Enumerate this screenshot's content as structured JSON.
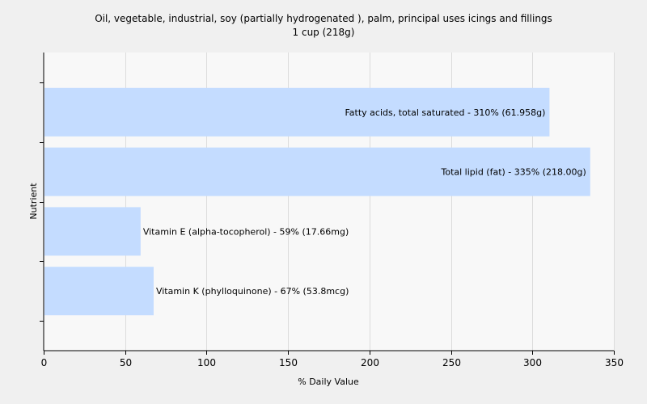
{
  "chart_data": {
    "type": "bar",
    "orientation": "horizontal",
    "title": "Oil, vegetable, industrial, soy (partially hydrogenated ), palm, principal uses icings and fillings",
    "subtitle": "1 cup (218g)",
    "xlabel": "% Daily Value",
    "ylabel": "Nutrient",
    "xlim": [
      0,
      350
    ],
    "xticks": [
      0,
      50,
      100,
      150,
      200,
      250,
      300,
      350
    ],
    "grid": true,
    "bar_color": "#c4dcff",
    "plot_background": "#f8f8f8",
    "page_background": "#f0f0f0",
    "categories": [
      "Fatty acids, total saturated",
      "Total lipid (fat)",
      "Vitamin E (alpha-tocopherol)",
      "Vitamin K (phylloquinone)"
    ],
    "values": [
      310,
      335,
      59,
      67
    ],
    "labels": [
      "Fatty acids, total saturated - 310% (61.958g)",
      "Total lipid (fat) - 335% (218.00g)",
      "Vitamin E (alpha-tocopherol) - 59% (17.66mg)",
      "Vitamin K (phylloquinone) - 67% (53.8mcg)"
    ]
  }
}
